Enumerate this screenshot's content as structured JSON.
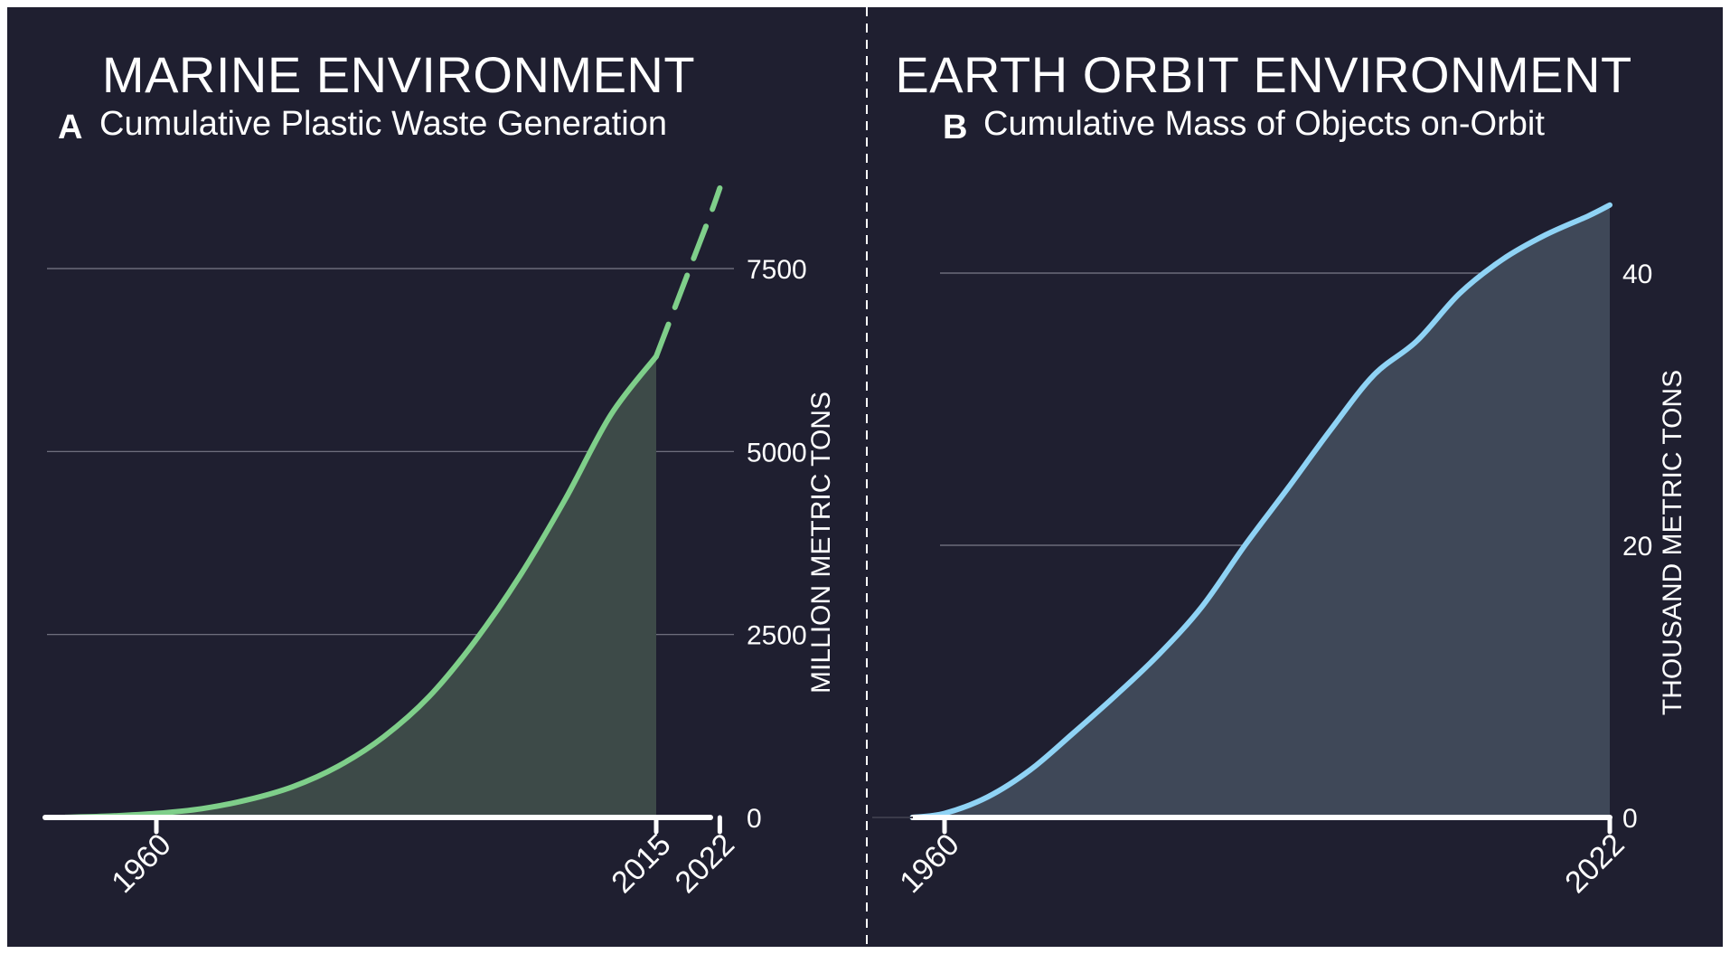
{
  "panels": [
    {
      "title": "MARINE ENVIRONMENT",
      "letter": "A",
      "subtitle": "Cumulative Plastic Waste Generation"
    },
    {
      "title": "EARTH ORBIT ENVIRONMENT",
      "letter": "B",
      "subtitle": "Cumulative Mass of Objects on-Orbit"
    }
  ],
  "colors": {
    "background": "#1f1f30",
    "plastic_line": "#7fcf8a",
    "plastic_fill": "#3d4a48",
    "orbit_line": "#8fd3f5",
    "orbit_fill": "#3f4858",
    "grid": "#7a7a88",
    "axis": "#ffffff"
  },
  "chart_data": [
    {
      "type": "area",
      "title": "Cumulative Plastic Waste Generation",
      "ylabel": "MILLION METRIC TONS",
      "xlabel": "",
      "xlim": [
        1950,
        2023
      ],
      "ylim": [
        0,
        8600
      ],
      "y_axis_position": "right",
      "grid": true,
      "xticks": [
        1960,
        2015,
        2022
      ],
      "yticks": [
        0,
        2500,
        5000,
        7500
      ],
      "series": [
        {
          "style": "solid-with-fill",
          "x": [
            1950,
            1955,
            1960,
            1965,
            1970,
            1975,
            1980,
            1985,
            1990,
            1995,
            2000,
            2005,
            2010,
            2015
          ],
          "y": [
            2,
            20,
            55,
            120,
            240,
            420,
            700,
            1100,
            1650,
            2400,
            3300,
            4350,
            5500,
            6300
          ]
        },
        {
          "style": "dashed-projection",
          "x": [
            2015,
            2017,
            2019,
            2021,
            2022
          ],
          "y": [
            6300,
            6950,
            7600,
            8250,
            8600
          ]
        }
      ]
    },
    {
      "type": "area",
      "title": "Cumulative Mass of Objects on-Orbit",
      "ylabel": "THOUSAND METRIC TONS",
      "xlabel": "",
      "xlim": [
        1957,
        2023
      ],
      "ylim": [
        0,
        46
      ],
      "y_axis_position": "right",
      "grid": true,
      "xticks": [
        1960,
        2022
      ],
      "yticks": [
        0,
        20,
        40
      ],
      "series": [
        {
          "style": "solid-with-fill",
          "x": [
            1957,
            1960,
            1964,
            1968,
            1972,
            1976,
            1980,
            1984,
            1988,
            1992,
            1996,
            2000,
            2004,
            2008,
            2012,
            2016,
            2020,
            2022
          ],
          "y": [
            0,
            0.3,
            1.5,
            3.5,
            6.2,
            9,
            12,
            15.5,
            20,
            24.2,
            28.5,
            32.5,
            35,
            38.5,
            41,
            42.8,
            44.2,
            45
          ]
        }
      ]
    }
  ]
}
